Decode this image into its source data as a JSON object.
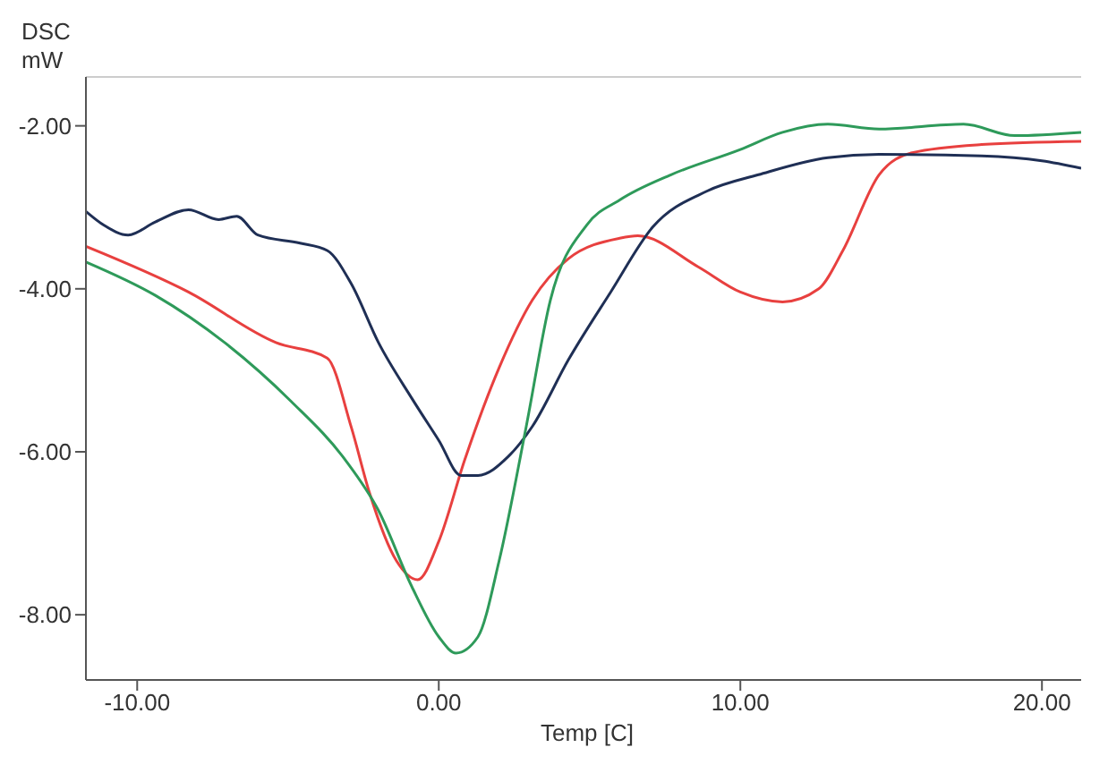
{
  "chart_data": {
    "type": "line",
    "xlabel": "Temp [C]",
    "ylabel": "DSC mW",
    "xlim": [
      -11.7,
      21.3
    ],
    "ylim": [
      -8.8,
      -1.4
    ],
    "xticks": [
      {
        "value": -10,
        "label": "-10.00"
      },
      {
        "value": 0,
        "label": "0.00"
      },
      {
        "value": 10,
        "label": "10.00"
      },
      {
        "value": 20,
        "label": "20.00"
      }
    ],
    "yticks": [
      {
        "value": -8,
        "label": "-8.00"
      },
      {
        "value": -6,
        "label": "-6.00"
      },
      {
        "value": -4,
        "label": "-4.00"
      },
      {
        "value": -2,
        "label": "-2.00"
      }
    ],
    "series": [
      {
        "color": "#e8403f",
        "x": [
          -11.7,
          -8.3,
          -5.4,
          -3.7,
          -2.9,
          -2.3,
          -1.4,
          -0.7,
          0,
          0.86,
          2.0,
          3.1,
          4.3,
          6.0,
          6.6,
          8.6,
          10.0,
          11.4,
          12.6,
          13.4,
          14.6,
          15.7,
          18,
          21.3
        ],
        "values": [
          -3.48,
          -4.04,
          -4.66,
          -4.85,
          -5.7,
          -6.5,
          -7.34,
          -7.57,
          -7.1,
          -6.1,
          -4.97,
          -4.14,
          -3.63,
          -3.38,
          -3.35,
          -3.73,
          -4.04,
          -4.16,
          -4.0,
          -3.53,
          -2.6,
          -2.33,
          -2.23,
          -2.19
        ]
      },
      {
        "color": "#1f2f55",
        "x": [
          -11.7,
          -11.1,
          -10.3,
          -9.4,
          -8.3,
          -7.3,
          -6.7,
          -6.0,
          -4.6,
          -3.7,
          -2.9,
          -2.0,
          -0.9,
          0,
          0.74,
          1.3,
          2.3,
          3.1,
          4.3,
          5.7,
          7.1,
          8.9,
          10.6,
          12.9,
          14.6,
          18,
          20,
          21.3
        ],
        "values": [
          -3.05,
          -3.22,
          -3.34,
          -3.18,
          -3.03,
          -3.15,
          -3.11,
          -3.34,
          -3.44,
          -3.53,
          -3.94,
          -4.66,
          -5.34,
          -5.86,
          -6.29,
          -6.29,
          -6.06,
          -5.69,
          -4.87,
          -4.04,
          -3.24,
          -2.8,
          -2.6,
          -2.39,
          -2.35,
          -2.37,
          -2.43,
          -2.52
        ]
      },
      {
        "color": "#2e9a5a",
        "x": [
          -11.7,
          -9.4,
          -7.1,
          -4.9,
          -3.1,
          -2.0,
          -0.9,
          0,
          0.57,
          1.3,
          2.0,
          2.9,
          3.7,
          4.9,
          6.0,
          7.7,
          10.0,
          11.4,
          12.9,
          14.6,
          17.4,
          19.1,
          21.3
        ],
        "values": [
          -3.67,
          -4.08,
          -4.66,
          -5.38,
          -6.1,
          -6.72,
          -7.65,
          -8.27,
          -8.47,
          -8.27,
          -7.34,
          -5.69,
          -4.14,
          -3.22,
          -2.91,
          -2.6,
          -2.29,
          -2.08,
          -1.98,
          -2.04,
          -1.98,
          -2.12,
          -2.08
        ]
      }
    ]
  }
}
